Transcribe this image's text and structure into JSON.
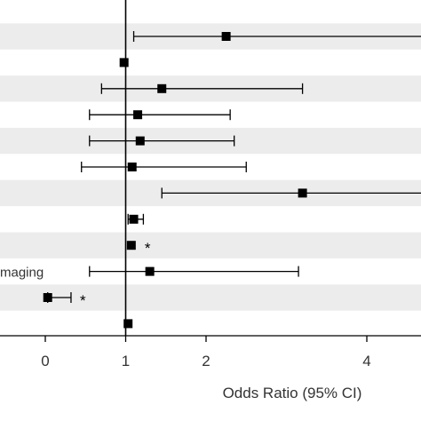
{
  "chart_data": {
    "type": "forest",
    "xlabel": "Odds Ratio (95% CI)",
    "xlim": [
      -0.5,
      4.7
    ],
    "xticks": [
      0,
      1,
      2,
      4
    ],
    "reference_line": 1,
    "row_labels": [
      "",
      "",
      "",
      "",
      "",
      "",
      "",
      "",
      "",
      "maging",
      "",
      ""
    ],
    "rows": [
      {
        "or": 2.25,
        "lo": 1.1,
        "hi": 4.75,
        "sig": ""
      },
      {
        "or": 0.98,
        "lo": null,
        "hi": null,
        "sig": ""
      },
      {
        "or": 1.45,
        "lo": 0.7,
        "hi": 3.2,
        "sig": ""
      },
      {
        "or": 1.15,
        "lo": 0.55,
        "hi": 2.3,
        "sig": ""
      },
      {
        "or": 1.18,
        "lo": 0.55,
        "hi": 2.35,
        "sig": ""
      },
      {
        "or": 1.08,
        "lo": 0.45,
        "hi": 2.5,
        "sig": ""
      },
      {
        "or": 3.2,
        "lo": 1.45,
        "hi": 4.75,
        "sig": ""
      },
      {
        "or": 1.1,
        "lo": 1.03,
        "hi": 1.22,
        "sig": ""
      },
      {
        "or": 1.07,
        "lo": null,
        "hi": null,
        "sig": "*"
      },
      {
        "or": 1.3,
        "lo": 0.55,
        "hi": 3.15,
        "sig": ""
      },
      {
        "or": 0.03,
        "lo": 0.03,
        "hi": 0.32,
        "sig": "*"
      },
      {
        "or": 1.03,
        "lo": null,
        "hi": null,
        "sig": ""
      }
    ]
  },
  "colors": {
    "band": "#ececec",
    "ink": "#000000",
    "text": "#333333"
  }
}
